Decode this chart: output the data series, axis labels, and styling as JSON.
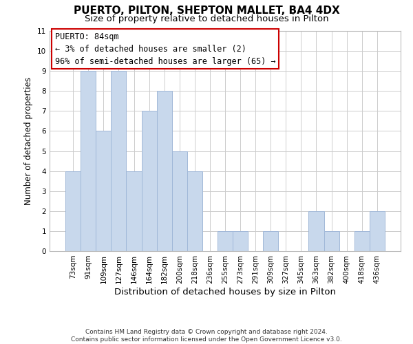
{
  "title": "PUERTO, PILTON, SHEPTON MALLET, BA4 4DX",
  "subtitle": "Size of property relative to detached houses in Pilton",
  "xlabel": "Distribution of detached houses by size in Pilton",
  "ylabel": "Number of detached properties",
  "footer_lines": [
    "Contains HM Land Registry data © Crown copyright and database right 2024.",
    "Contains public sector information licensed under the Open Government Licence v3.0."
  ],
  "categories": [
    "73sqm",
    "91sqm",
    "109sqm",
    "127sqm",
    "146sqm",
    "164sqm",
    "182sqm",
    "200sqm",
    "218sqm",
    "236sqm",
    "255sqm",
    "273sqm",
    "291sqm",
    "309sqm",
    "327sqm",
    "345sqm",
    "363sqm",
    "382sqm",
    "400sqm",
    "418sqm",
    "436sqm"
  ],
  "values": [
    4,
    9,
    6,
    9,
    4,
    7,
    8,
    5,
    4,
    0,
    1,
    1,
    0,
    1,
    0,
    0,
    2,
    1,
    0,
    1,
    2
  ],
  "bar_color": "#c8d8ec",
  "bar_edge_color": "#a0b8d8",
  "annotation_box_text": "PUERTO: 84sqm\n← 3% of detached houses are smaller (2)\n96% of semi-detached houses are larger (65) →",
  "annotation_box_edge_color": "#cc0000",
  "annotation_box_facecolor": "#ffffff",
  "ylim": [
    0,
    11
  ],
  "yticks": [
    0,
    1,
    2,
    3,
    4,
    5,
    6,
    7,
    8,
    9,
    10,
    11
  ],
  "grid_color": "#cccccc",
  "bg_color": "#ffffff",
  "title_fontsize": 11,
  "subtitle_fontsize": 9.5,
  "xlabel_fontsize": 9.5,
  "ylabel_fontsize": 8.5,
  "tick_fontsize": 7.5,
  "annotation_fontsize": 8.5,
  "footer_fontsize": 6.5
}
